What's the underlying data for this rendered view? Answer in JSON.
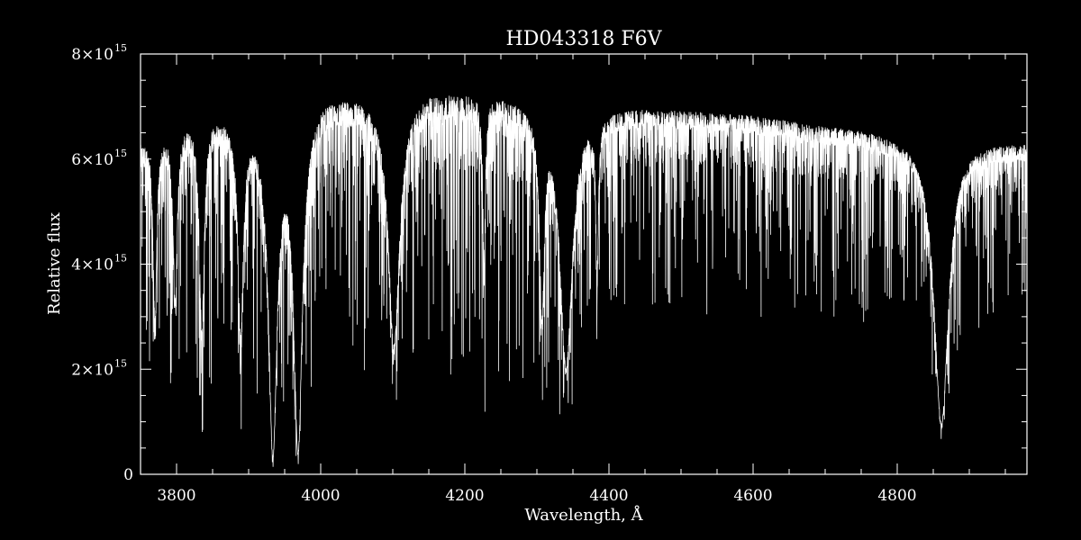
{
  "chart_data": {
    "type": "line",
    "title": "HD043318   F6V",
    "xlabel": "Wavelength, Å",
    "ylabel": "Relative flux",
    "xlim": [
      3750,
      4980
    ],
    "ylim": [
      0,
      8000000000000000.0
    ],
    "x_ticks": [
      {
        "value": 3800,
        "label": "3800"
      },
      {
        "value": 4000,
        "label": "4000"
      },
      {
        "value": 4200,
        "label": "4200"
      },
      {
        "value": 4400,
        "label": "4400"
      },
      {
        "value": 4600,
        "label": "4600"
      },
      {
        "value": 4800,
        "label": "4800"
      }
    ],
    "y_ticks": [
      {
        "value": 0,
        "label": "0",
        "mantissa": "",
        "exponent": ""
      },
      {
        "value": 2000000000000000.0,
        "label": "2×10^15",
        "mantissa": "2×10",
        "exponent": "15"
      },
      {
        "value": 4000000000000000.0,
        "label": "4×10^15",
        "mantissa": "4×10",
        "exponent": "15"
      },
      {
        "value": 6000000000000000.0,
        "label": "6×10^15",
        "mantissa": "6×10",
        "exponent": "15"
      },
      {
        "value": 8000000000000000.0,
        "label": "8×10^15",
        "mantissa": "8×10",
        "exponent": "15"
      }
    ],
    "x_minor_step": 50,
    "y_minor_step": 500000000000000.0,
    "grid": false,
    "line_color": "#ffffff",
    "background": "#000000",
    "continuum": [
      [
        3750,
        6400000000000000.0
      ],
      [
        3800,
        6800000000000000.0
      ],
      [
        3850,
        7000000000000000.0
      ],
      [
        3900,
        6900000000000000.0
      ],
      [
        3950,
        6700000000000000.0
      ],
      [
        4000,
        7300000000000000.0
      ],
      [
        4050,
        7300000000000000.0
      ],
      [
        4100,
        7100000000000000.0
      ],
      [
        4150,
        7350000000000000.0
      ],
      [
        4200,
        7300000000000000.0
      ],
      [
        4250,
        7250000000000000.0
      ],
      [
        4300,
        7100000000000000.0
      ],
      [
        4350,
        6900000000000000.0
      ],
      [
        4400,
        7000000000000000.0
      ],
      [
        4450,
        7000000000000000.0
      ],
      [
        4500,
        6950000000000000.0
      ],
      [
        4550,
        6900000000000000.0
      ],
      [
        4600,
        6850000000000000.0
      ],
      [
        4650,
        6750000000000000.0
      ],
      [
        4700,
        6650000000000000.0
      ],
      [
        4750,
        6600000000000000.0
      ],
      [
        4800,
        6500000000000000.0
      ],
      [
        4850,
        6450000000000000.0
      ],
      [
        4900,
        6400000000000000.0
      ],
      [
        4950,
        6350000000000000.0
      ],
      [
        4980,
        6350000000000000.0
      ]
    ],
    "absorption_lines": [
      {
        "center": 3770,
        "depth": 0.55,
        "width": 3
      },
      {
        "center": 3798,
        "depth": 0.5,
        "width": 3.5
      },
      {
        "center": 3835,
        "depth": 0.6,
        "width": 4
      },
      {
        "center": 3889,
        "depth": 0.6,
        "width": 4.5
      },
      {
        "center": 3933.7,
        "depth": 0.95,
        "width": 7
      },
      {
        "center": 3968.5,
        "depth": 0.94,
        "width": 7
      },
      {
        "center": 4101.7,
        "depth": 0.65,
        "width": 9
      },
      {
        "center": 4226.7,
        "depth": 0.45,
        "width": 2
      },
      {
        "center": 4307,
        "depth": 0.55,
        "width": 4
      },
      {
        "center": 4340.5,
        "depth": 0.7,
        "width": 10
      },
      {
        "center": 4383.5,
        "depth": 0.45,
        "width": 2
      },
      {
        "center": 4861.3,
        "depth": 0.85,
        "width": 12
      }
    ]
  }
}
